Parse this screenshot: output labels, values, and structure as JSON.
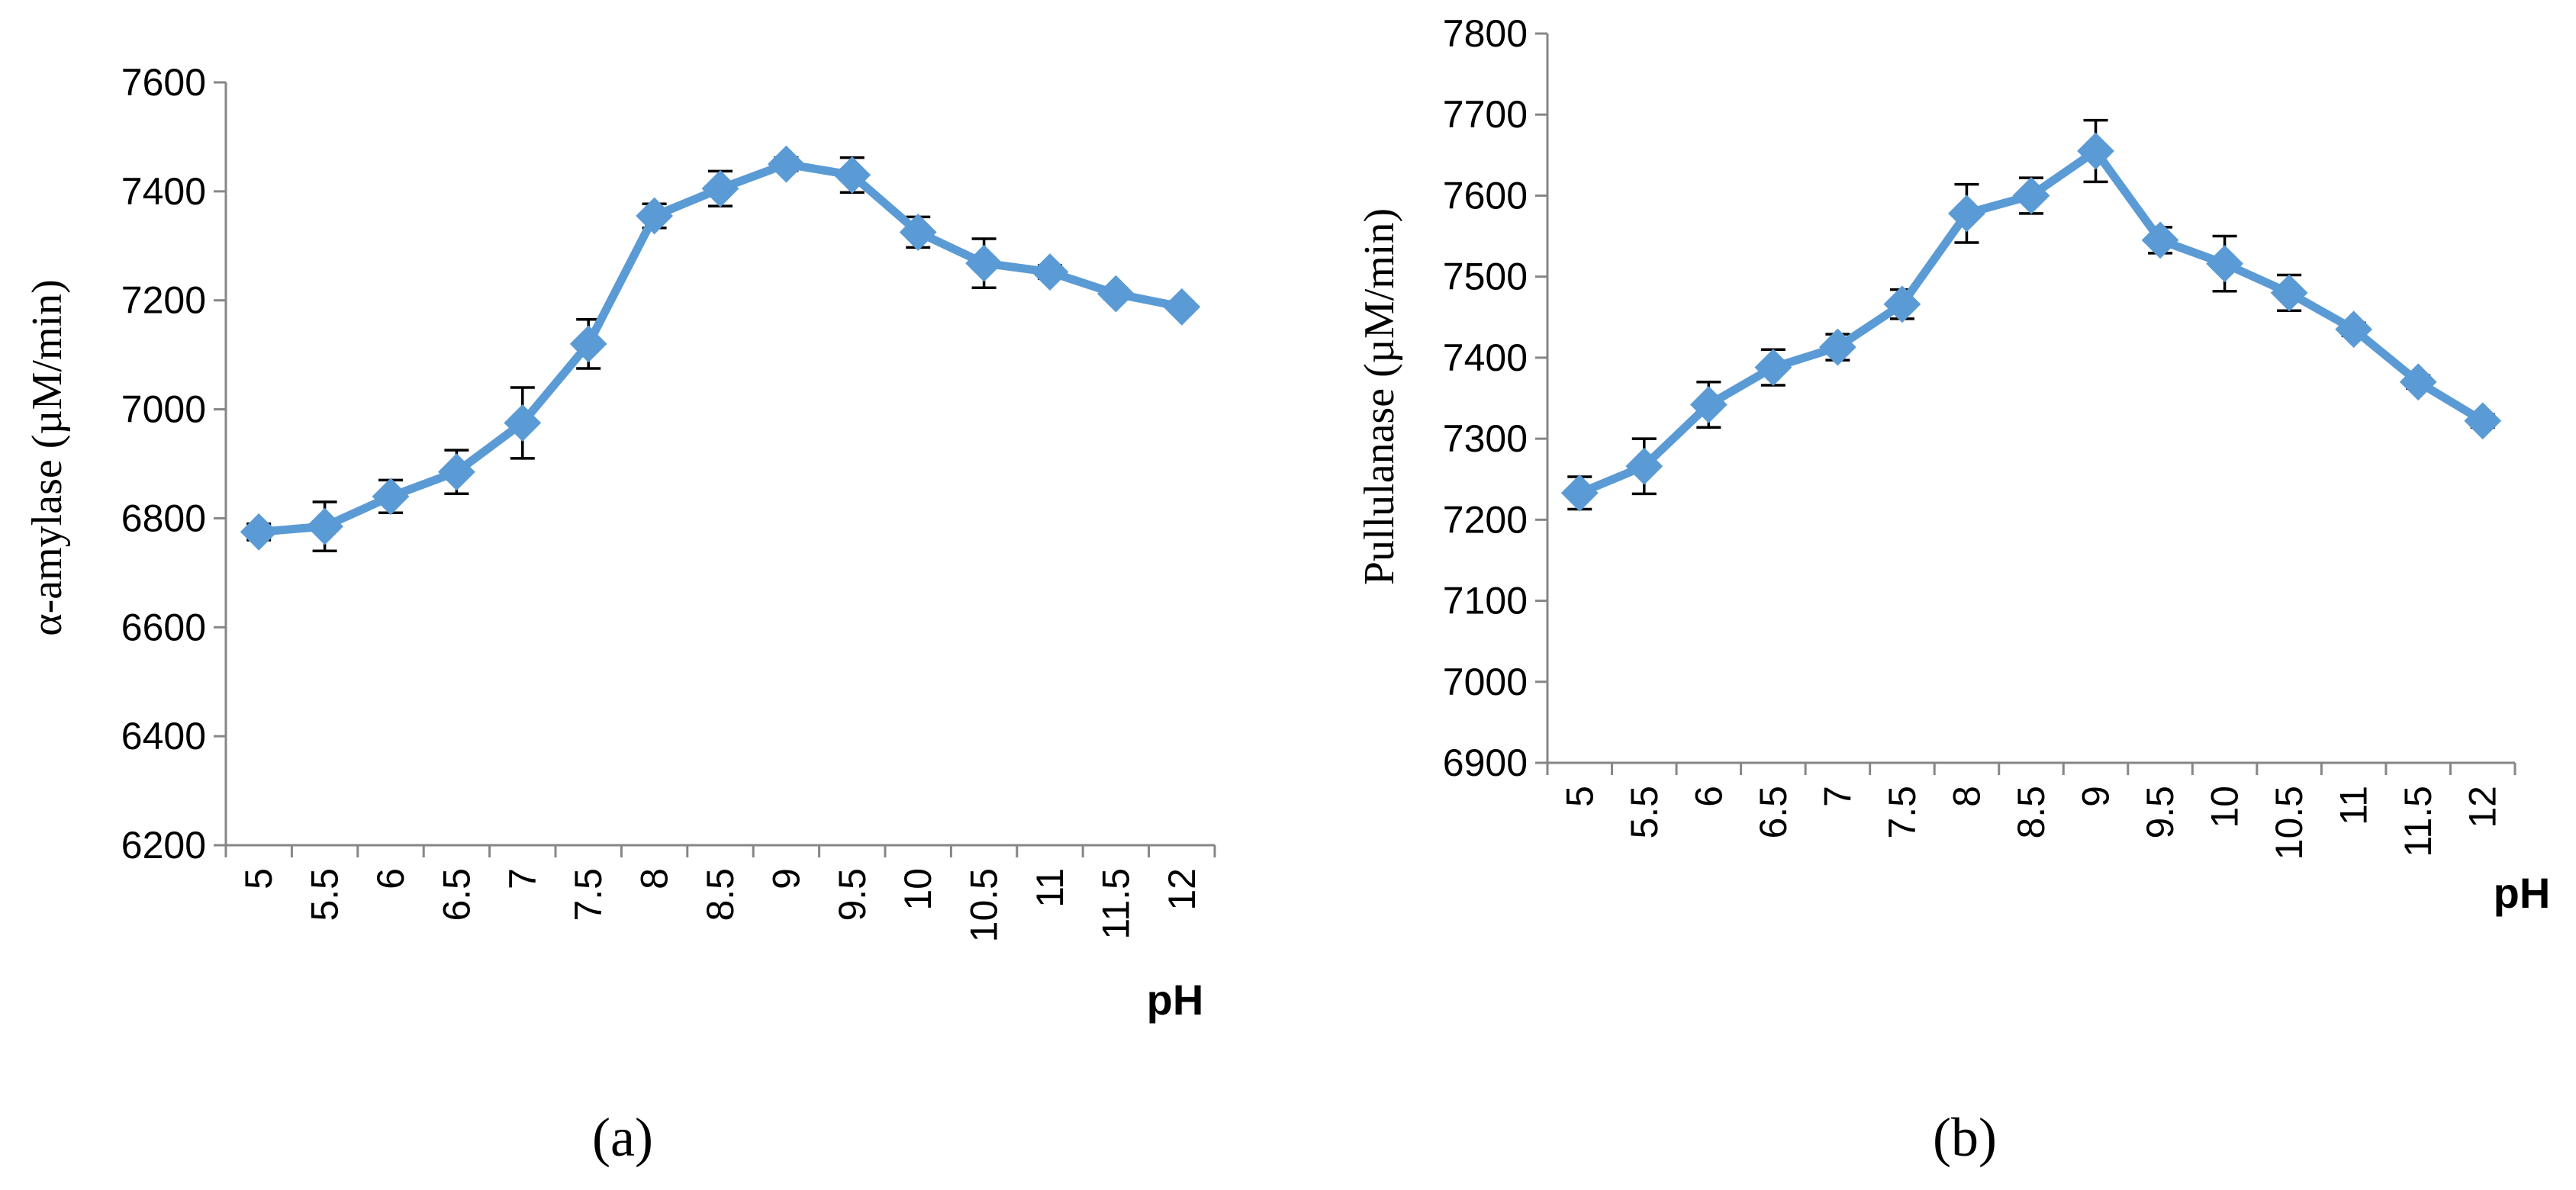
{
  "chart_data": [
    {
      "type": "line",
      "panel_label": "(a)",
      "xlabel": "pH",
      "ylabel": "α-amylase (µM/min)",
      "ylim": [
        6200,
        7600
      ],
      "yticks": [
        6200,
        6400,
        6600,
        6800,
        7000,
        7200,
        7400,
        7600
      ],
      "categories": [
        "5",
        "5.5",
        "6",
        "6.5",
        "7",
        "7.5",
        "8",
        "8.5",
        "9",
        "9.5",
        "10",
        "10.5",
        "11",
        "11.5",
        "12"
      ],
      "series": [
        {
          "values": [
            6775,
            6785,
            6840,
            6885,
            6975,
            7120,
            7355,
            7405,
            7450,
            7430,
            7325,
            7268,
            7252,
            7212,
            7188
          ],
          "errors": [
            15,
            45,
            30,
            40,
            65,
            45,
            22,
            32,
            12,
            32,
            28,
            45,
            12,
            10,
            10
          ]
        }
      ],
      "color": "#5b9bd5",
      "grid": false,
      "marker": "diamond"
    },
    {
      "type": "line",
      "panel_label": "(b)",
      "xlabel": "pH",
      "ylabel": "Pullulanase (µM/min)",
      "ylim": [
        6900,
        7800
      ],
      "yticks": [
        6900,
        7000,
        7100,
        7200,
        7300,
        7400,
        7500,
        7600,
        7700,
        7800
      ],
      "categories": [
        "5",
        "5.5",
        "6",
        "6.5",
        "7",
        "7.5",
        "8",
        "8.5",
        "9",
        "9.5",
        "10",
        "10.5",
        "11",
        "11.5",
        "12"
      ],
      "series": [
        {
          "values": [
            7233,
            7266,
            7342,
            7388,
            7413,
            7466,
            7578,
            7600,
            7655,
            7545,
            7516,
            7480,
            7435,
            7370,
            7322
          ],
          "errors": [
            20,
            34,
            28,
            22,
            16,
            18,
            36,
            22,
            38,
            16,
            34,
            22,
            8,
            8,
            8
          ]
        }
      ],
      "color": "#5b9bd5",
      "grid": false,
      "marker": "diamond"
    }
  ]
}
